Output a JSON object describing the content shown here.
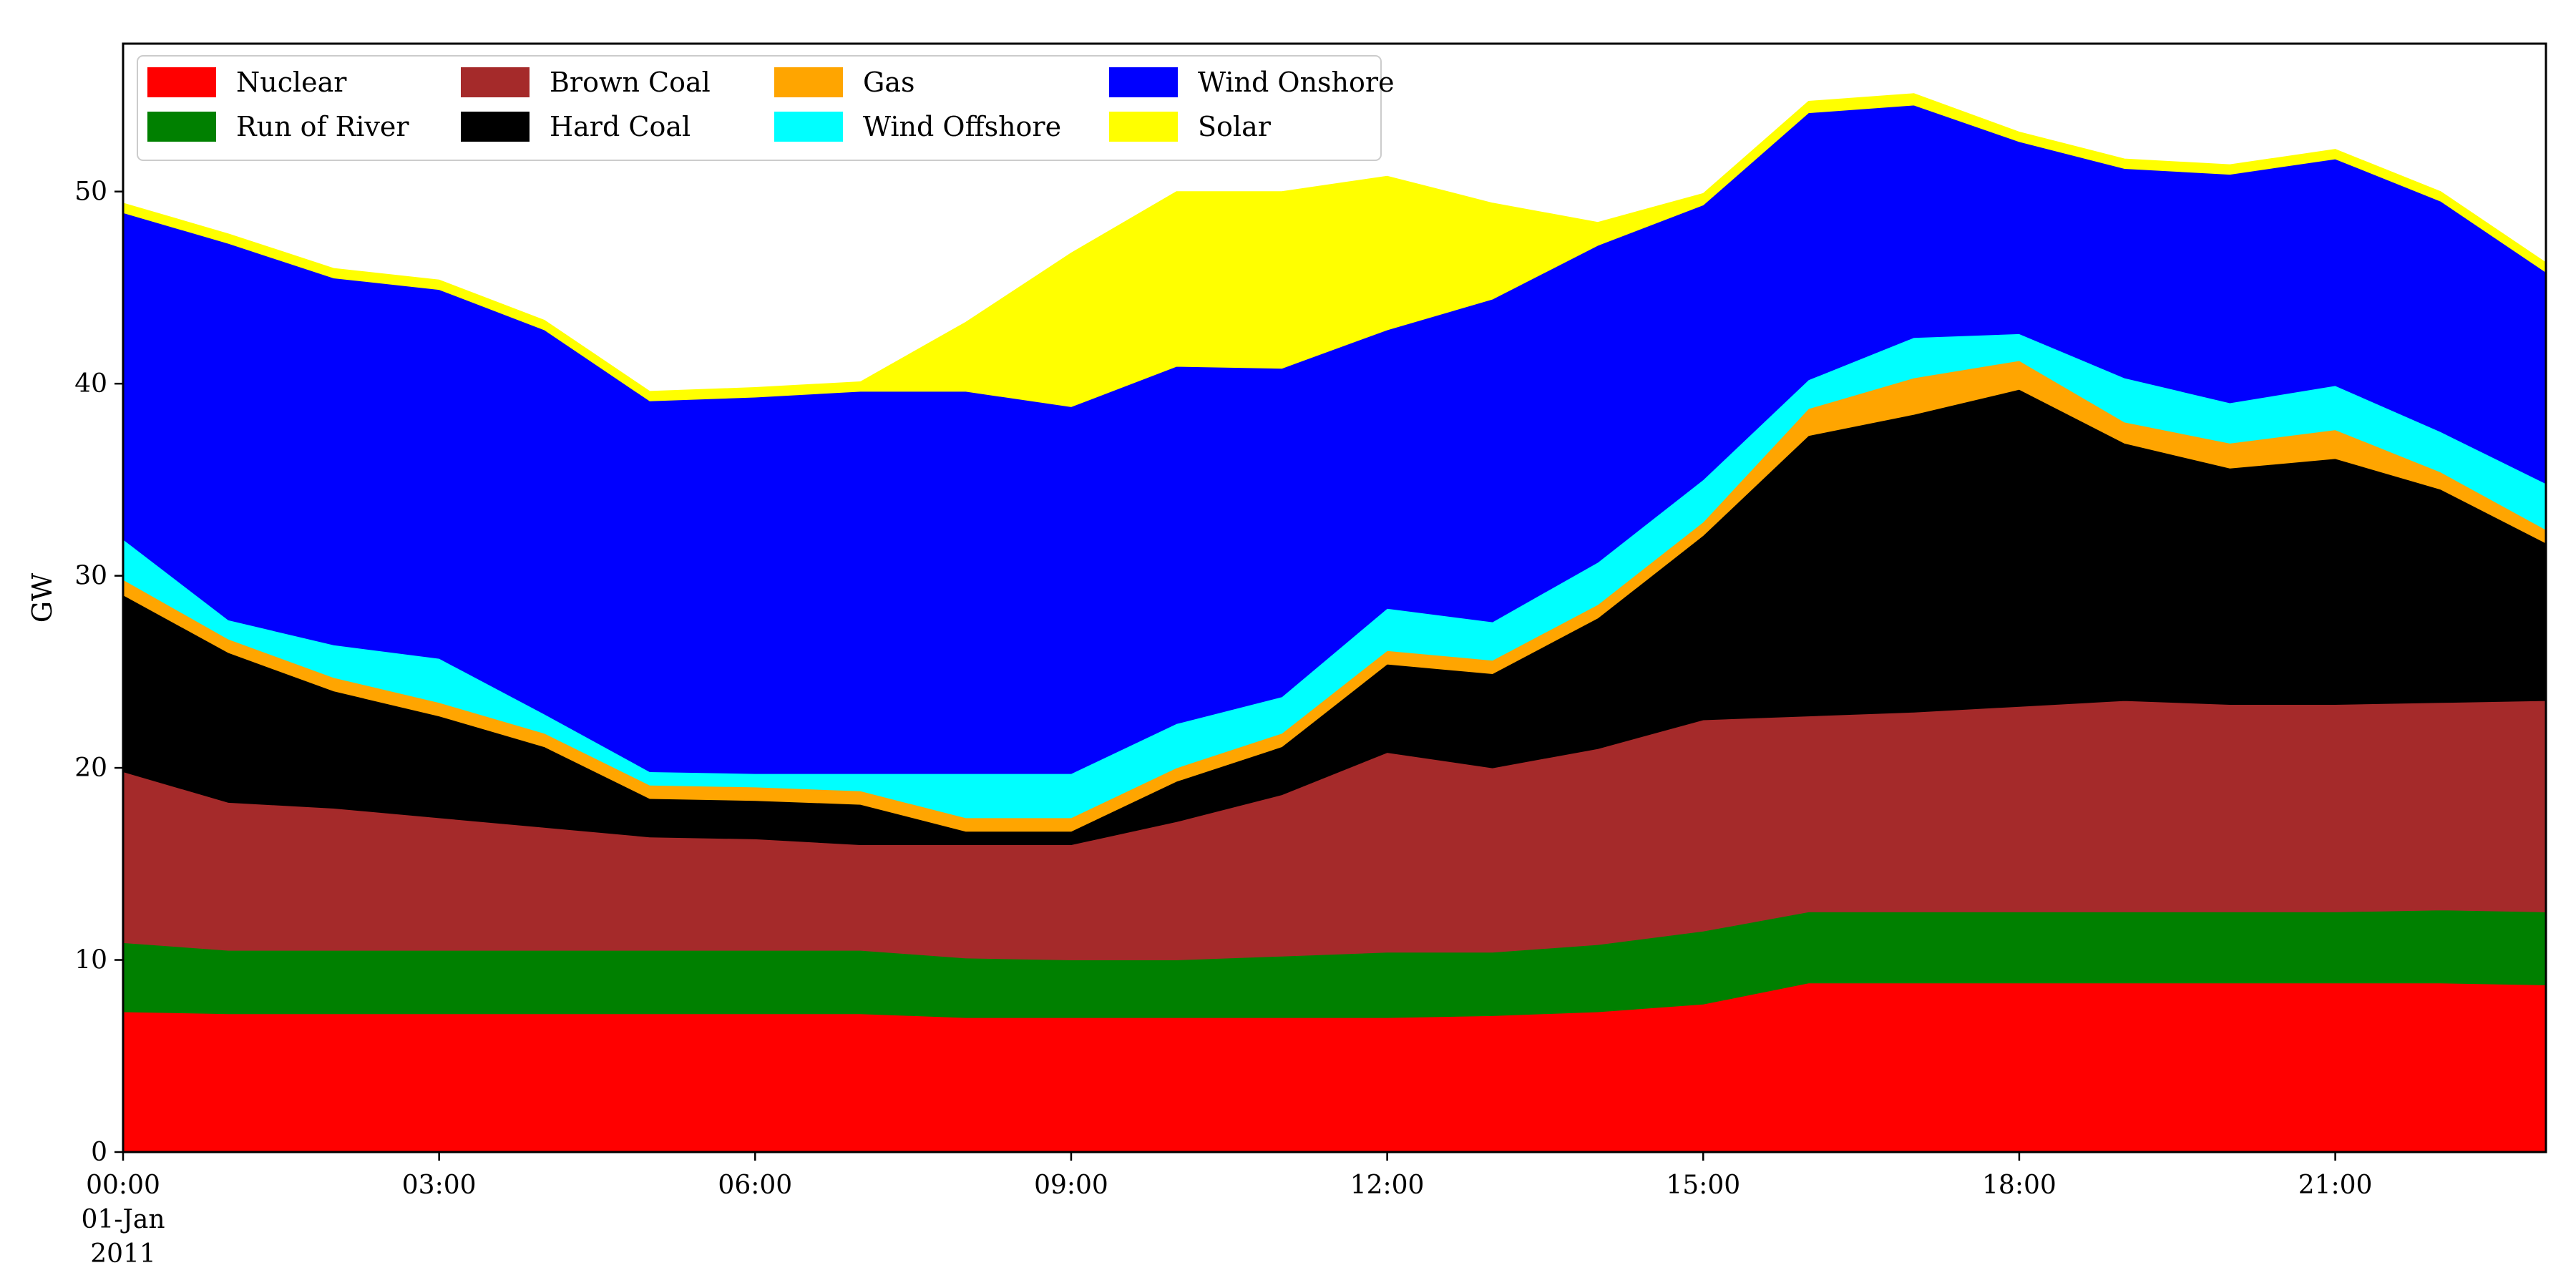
{
  "chart_data": {
    "type": "area",
    "stacked": true,
    "title": "",
    "xlabel": "",
    "ylabel": "GW",
    "ylim": [
      0,
      57.7
    ],
    "x_hours": [
      0,
      1,
      2,
      3,
      4,
      5,
      6,
      7,
      8,
      9,
      10,
      11,
      12,
      13,
      14,
      15,
      16,
      17,
      18,
      19,
      20,
      21,
      22,
      23
    ],
    "x_tick_labels": [
      {
        "hour": 0,
        "lines": [
          "00:00",
          "01-Jan",
          "2011"
        ]
      },
      {
        "hour": 3,
        "lines": [
          "03:00"
        ]
      },
      {
        "hour": 6,
        "lines": [
          "06:00"
        ]
      },
      {
        "hour": 9,
        "lines": [
          "09:00"
        ]
      },
      {
        "hour": 12,
        "lines": [
          "12:00"
        ]
      },
      {
        "hour": 15,
        "lines": [
          "15:00"
        ]
      },
      {
        "hour": 18,
        "lines": [
          "18:00"
        ]
      },
      {
        "hour": 21,
        "lines": [
          "21:00"
        ]
      }
    ],
    "y_ticks": [
      0,
      10,
      20,
      30,
      40,
      50
    ],
    "grid": false,
    "legend_position": "upper-left",
    "series": [
      {
        "name": "Nuclear",
        "color": "#ff0000",
        "values": [
          7.3,
          7.2,
          7.2,
          7.2,
          7.2,
          7.2,
          7.2,
          7.2,
          7.0,
          7.0,
          7.0,
          7.0,
          7.0,
          7.1,
          7.3,
          7.7,
          8.8,
          8.8,
          8.8,
          8.8,
          8.8,
          8.8,
          8.8,
          8.7
        ]
      },
      {
        "name": "Run of River",
        "color": "#008000",
        "values": [
          3.6,
          3.3,
          3.3,
          3.3,
          3.3,
          3.3,
          3.3,
          3.3,
          3.1,
          3.0,
          3.0,
          3.2,
          3.4,
          3.3,
          3.5,
          3.8,
          3.7,
          3.7,
          3.7,
          3.7,
          3.7,
          3.7,
          3.8,
          3.8
        ]
      },
      {
        "name": "Brown Coal",
        "color": "#a52a2a",
        "values": [
          8.9,
          7.7,
          7.4,
          6.9,
          6.4,
          5.9,
          5.8,
          5.5,
          5.9,
          6.0,
          7.2,
          8.4,
          10.4,
          9.6,
          10.2,
          11.0,
          10.2,
          10.4,
          10.7,
          11.0,
          10.8,
          10.8,
          10.8,
          11.0
        ]
      },
      {
        "name": "Hard Coal",
        "color": "#000000",
        "values": [
          9.2,
          7.8,
          6.1,
          5.3,
          4.2,
          2.0,
          2.0,
          2.1,
          0.7,
          0.7,
          2.1,
          2.5,
          4.6,
          4.9,
          6.8,
          9.6,
          14.6,
          15.5,
          16.5,
          13.4,
          12.3,
          12.8,
          11.1,
          8.2
        ]
      },
      {
        "name": "Gas",
        "color": "#ffa500",
        "values": [
          0.8,
          0.7,
          0.7,
          0.7,
          0.7,
          0.7,
          0.7,
          0.7,
          0.7,
          0.7,
          0.7,
          0.7,
          0.7,
          0.7,
          0.7,
          0.7,
          1.4,
          1.9,
          1.5,
          1.1,
          1.3,
          1.5,
          0.9,
          0.7
        ]
      },
      {
        "name": "Wind Offshore",
        "color": "#00ffff",
        "values": [
          2.1,
          1.0,
          1.7,
          2.3,
          1.0,
          0.7,
          0.7,
          0.9,
          2.3,
          2.3,
          2.3,
          1.9,
          2.2,
          2.0,
          2.2,
          2.2,
          1.5,
          2.1,
          1.4,
          2.3,
          2.1,
          2.3,
          2.1,
          2.4
        ]
      },
      {
        "name": "Wind Onshore",
        "color": "#0000ff",
        "values": [
          17.0,
          19.6,
          19.1,
          19.2,
          20.0,
          19.3,
          19.6,
          19.9,
          19.9,
          19.1,
          18.6,
          17.1,
          14.5,
          16.8,
          16.5,
          14.3,
          13.9,
          12.1,
          10.0,
          10.9,
          11.9,
          11.8,
          12.0,
          11.0
        ]
      },
      {
        "name": "Solar",
        "color": "#ffff00",
        "values": [
          0.5,
          0.5,
          0.5,
          0.5,
          0.5,
          0.5,
          0.5,
          0.5,
          3.6,
          8.0,
          9.1,
          9.2,
          8.0,
          5.0,
          1.2,
          0.6,
          0.6,
          0.6,
          0.5,
          0.5,
          0.5,
          0.5,
          0.5,
          0.5
        ]
      }
    ]
  },
  "legend": {
    "columns": [
      [
        "Nuclear",
        "Run of River"
      ],
      [
        "Brown Coal",
        "Hard Coal"
      ],
      [
        "Gas",
        "Wind Offshore"
      ],
      [
        "Wind Onshore",
        "Solar"
      ]
    ]
  }
}
